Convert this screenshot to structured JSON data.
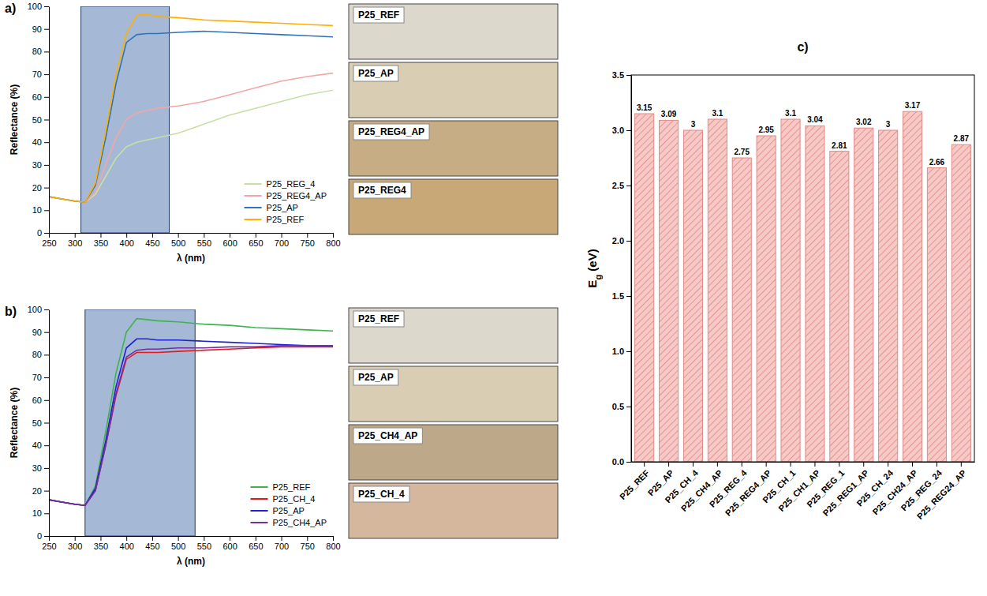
{
  "chart_data": [
    {
      "type": "line",
      "panel_label": "a)",
      "x_label": "λ (nm)",
      "y_label": "Reflectance (%)",
      "xlim": [
        250,
        800
      ],
      "xticks": [
        250,
        300,
        350,
        400,
        450,
        500,
        550,
        600,
        650,
        700,
        750,
        800
      ],
      "ylim": [
        0,
        100
      ],
      "yticks": [
        0,
        10,
        20,
        30,
        40,
        50,
        60,
        70,
        80,
        90,
        100
      ],
      "grid": false,
      "legend": "lower right",
      "shaded_range": [
        312,
        483
      ],
      "x": [
        250,
        275,
        300,
        320,
        340,
        360,
        380,
        400,
        420,
        440,
        460,
        500,
        550,
        600,
        650,
        700,
        750,
        800
      ],
      "series": [
        {
          "name": "P25_REG_4",
          "color": "#c5e0a5",
          "values": [
            16,
            15,
            14,
            13.5,
            17,
            25,
            33,
            38,
            40,
            41,
            42,
            44,
            48,
            52,
            55,
            58,
            61,
            63
          ]
        },
        {
          "name": "P25_REG4_AP",
          "color": "#f4a6a6",
          "values": [
            16,
            15,
            14,
            13.5,
            18,
            30,
            42,
            50,
            53,
            54,
            55,
            56,
            58,
            61,
            64,
            67,
            69,
            70.5
          ]
        },
        {
          "name": "P25_AP",
          "color": "#2e75b6",
          "values": [
            16,
            15,
            14,
            13.5,
            21,
            42,
            66,
            84,
            87.5,
            88,
            88,
            88.5,
            89,
            88.5,
            88,
            87.5,
            87,
            86.5
          ]
        },
        {
          "name": "P25_REF",
          "color": "#ffb000",
          "values": [
            16,
            15,
            14,
            13.5,
            22,
            45,
            70,
            88,
            96,
            96.5,
            95.5,
            95,
            94,
            93.5,
            93,
            92.5,
            92,
            91.5
          ]
        }
      ],
      "photos": [
        {
          "label": "P25_REF",
          "color": "#dcd8cc"
        },
        {
          "label": "P25_AP",
          "color": "#d9cdb3"
        },
        {
          "label": "P25_REG4_AP",
          "color": "#c6ad83"
        },
        {
          "label": "P25_REG4",
          "color": "#c9a878"
        }
      ]
    },
    {
      "type": "line",
      "panel_label": "b)",
      "x_label": "λ (nm)",
      "y_label": "Reflectance (%)",
      "xlim": [
        250,
        800
      ],
      "xticks": [
        250,
        300,
        350,
        400,
        450,
        500,
        550,
        600,
        650,
        700,
        750,
        800
      ],
      "ylim": [
        0,
        100
      ],
      "yticks": [
        0,
        10,
        20,
        30,
        40,
        50,
        60,
        70,
        80,
        90,
        100
      ],
      "grid": false,
      "legend": "lower right",
      "shaded_range": [
        320,
        533
      ],
      "x": [
        250,
        275,
        300,
        320,
        340,
        360,
        380,
        400,
        420,
        440,
        460,
        500,
        550,
        600,
        650,
        700,
        750,
        800
      ],
      "series": [
        {
          "name": "P25_REF",
          "color": "#3cb44b",
          "values": [
            16,
            15,
            14,
            13.5,
            22,
            46,
            72,
            90,
            96,
            95.5,
            95,
            94.5,
            93.5,
            93,
            92,
            91.5,
            91,
            90.5
          ]
        },
        {
          "name": "P25_CH_4",
          "color": "#e41a1c",
          "values": [
            16,
            15,
            14,
            13.5,
            20,
            40,
            62,
            78,
            81,
            81,
            81,
            81.5,
            82,
            82.5,
            83,
            83.5,
            83.5,
            83.5
          ]
        },
        {
          "name": "P25_AP",
          "color": "#1f1fd6",
          "values": [
            16,
            15,
            14,
            13.5,
            21,
            42,
            66,
            83,
            87,
            87,
            86.5,
            86.5,
            86,
            85.5,
            85,
            84.5,
            84,
            84
          ]
        },
        {
          "name": "P25_CH4_AP",
          "color": "#7030a0",
          "values": [
            16,
            15,
            14,
            13.5,
            20,
            40,
            63,
            79,
            82,
            82.5,
            82.5,
            83,
            83,
            83.5,
            83.5,
            84,
            84,
            84
          ]
        }
      ],
      "photos": [
        {
          "label": "P25_REF",
          "color": "#dcd8cc"
        },
        {
          "label": "P25_AP",
          "color": "#d9cdb3"
        },
        {
          "label": "P25_CH4_AP",
          "color": "#bda98a"
        },
        {
          "label": "P25_CH_4",
          "color": "#d4b79c"
        }
      ]
    },
    {
      "type": "bar",
      "panel_label": "c)",
      "y_label": "Eg (eV)",
      "color": "#f7c9c6",
      "ylim": [
        0,
        3.5
      ],
      "yticks": [
        {
          "value": 0,
          "label": "0.0"
        },
        0.5,
        {
          "value": 1,
          "label": "1.0"
        },
        1.5,
        {
          "value": 2,
          "label": "2.0"
        },
        2.5,
        {
          "value": 3,
          "label": "3.0"
        },
        3.5
      ],
      "grid": false,
      "data_labels": true,
      "categories": [
        "P25_REF",
        "P25_AP",
        "P25_CH_4",
        "P25_CH4_AP",
        "P25_REG_4",
        "P25_REG4_AP",
        "P25_CH_1",
        "P25_CH1_AP",
        "P25_REG_1",
        "P25_REG1_AP",
        "P25_CH_24",
        "P25_CH24_AP",
        "P25_REG_24",
        "P25_REG24_AP"
      ],
      "values": [
        3.15,
        3.09,
        3,
        3.1,
        2.75,
        2.95,
        3.1,
        3.04,
        2.81,
        3.02,
        3,
        3.17,
        2.66,
        2.87
      ]
    }
  ]
}
